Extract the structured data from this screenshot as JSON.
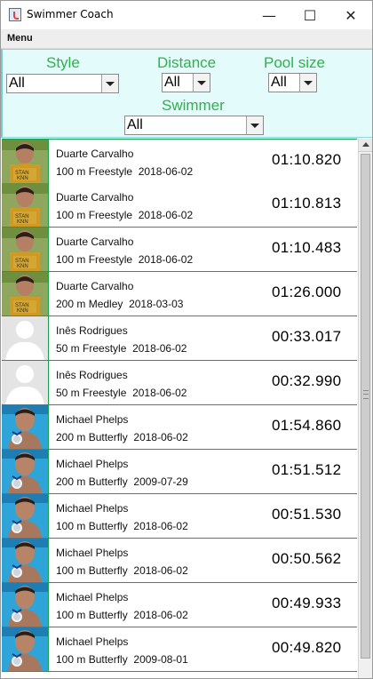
{
  "window": {
    "title": "Swimmer Coach",
    "minimize": "—",
    "maximize": "☐",
    "close": "✕"
  },
  "menu": {
    "label": "Menu"
  },
  "filters": {
    "style": {
      "label": "Style",
      "value": "All"
    },
    "distance": {
      "label": "Distance",
      "value": "All"
    },
    "pool_size": {
      "label": "Pool size",
      "value": "All"
    },
    "swimmer": {
      "label": "Swimmer",
      "value": "All"
    }
  },
  "results": [
    {
      "name": "Duarte Carvalho",
      "distance": "100 m",
      "style": "Freestyle",
      "date": "2018-06-02",
      "time": "01:10.820",
      "avatar": "duarte"
    },
    {
      "name": "Duarte Carvalho",
      "distance": "100 m",
      "style": "Freestyle",
      "date": "2018-06-02",
      "time": "01:10.813",
      "avatar": "duarte"
    },
    {
      "name": "Duarte Carvalho",
      "distance": "100 m",
      "style": "Freestyle",
      "date": "2018-06-02",
      "time": "01:10.483",
      "avatar": "duarte"
    },
    {
      "name": "Duarte Carvalho",
      "distance": "200 m",
      "style": "Medley",
      "date": "2018-03-03",
      "time": "01:26.000",
      "avatar": "duarte"
    },
    {
      "name": "Inês Rodrigues",
      "distance": "50 m",
      "style": "Freestyle",
      "date": "2018-06-02",
      "time": "00:33.017",
      "avatar": "placeholder"
    },
    {
      "name": "Inês Rodrigues",
      "distance": "50 m",
      "style": "Freestyle",
      "date": "2018-06-02",
      "time": "00:32.990",
      "avatar": "placeholder"
    },
    {
      "name": "Michael Phelps",
      "distance": "200 m",
      "style": "Butterfly",
      "date": "2018-06-02",
      "time": "01:54.860",
      "avatar": "michael"
    },
    {
      "name": "Michael Phelps",
      "distance": "200 m",
      "style": "Butterfly",
      "date": "2009-07-29",
      "time": "01:51.512",
      "avatar": "michael"
    },
    {
      "name": "Michael Phelps",
      "distance": "100 m",
      "style": "Butterfly",
      "date": "2018-06-02",
      "time": "00:51.530",
      "avatar": "michael"
    },
    {
      "name": "Michael Phelps",
      "distance": "100 m",
      "style": "Butterfly",
      "date": "2018-06-02",
      "time": "00:50.562",
      "avatar": "michael"
    },
    {
      "name": "Michael Phelps",
      "distance": "100 m",
      "style": "Butterfly",
      "date": "2018-06-02",
      "time": "00:49.933",
      "avatar": "michael"
    },
    {
      "name": "Michael Phelps",
      "distance": "100 m",
      "style": "Butterfly",
      "date": "2009-08-01",
      "time": "00:49.820",
      "avatar": "michael"
    }
  ],
  "colors": {
    "accent_green": "#2fb24a",
    "filter_bg": "#e4fbfb",
    "row_border": "#1aa04a"
  }
}
